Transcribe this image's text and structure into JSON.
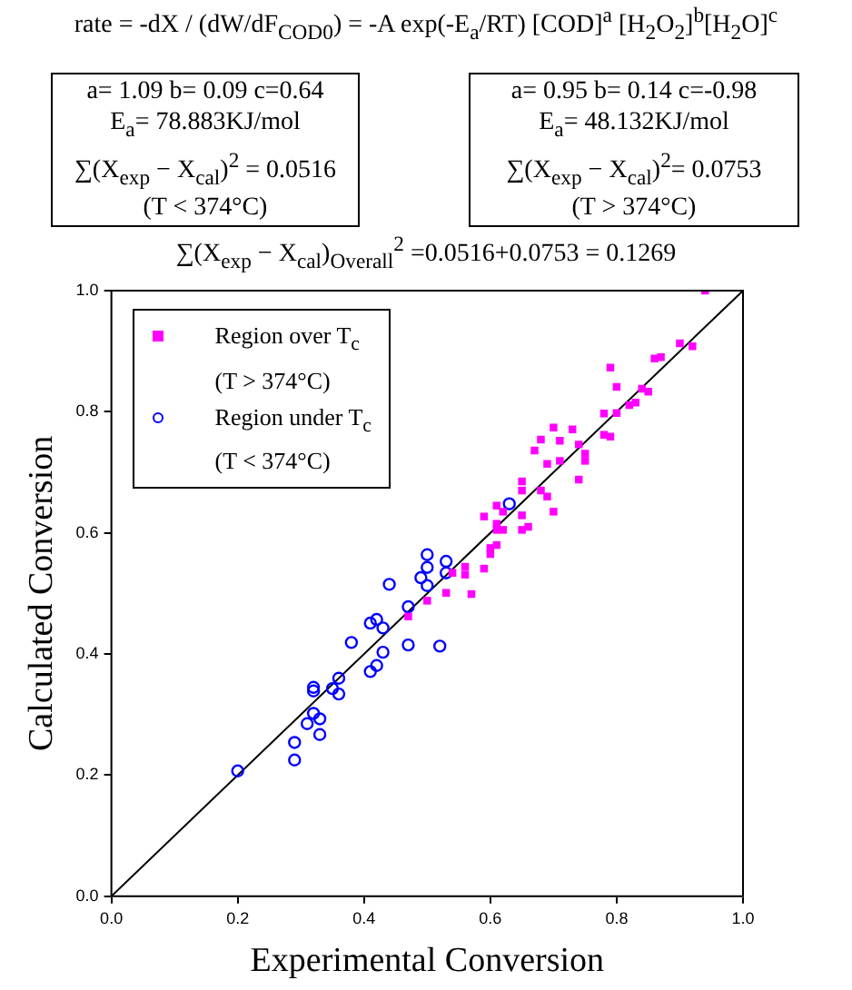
{
  "chart_data": {
    "type": "scatter",
    "xlabel": "Experimental Conversion",
    "ylabel": "Calculated Conversion",
    "annotations": [
      "rate = -dX / (dW/dF$_{COD0}$) = -A exp(-E$_{a}$/RT) [COD]$^{a}$ [H$_{2}$O$_{2}$]$^{b}$[H$_{2}$O]$^{c}$",
      "a= 1.09 b= 0.09 c=0.64\nE$_{a}$= 78.883KJ/mol\n∑(X$_{exp}$ − X$_{cal}$)$^{2}$ = 0.0516\n(T < 374°C)",
      "a= 0.95 b= 0.14 c=-0.98\nE$_{a}$= 48.132KJ/mol\n∑(X$_{exp}$ − X$_{cal}$)$^{2}$= 0.0753\n(T > 374°C)",
      "∑(X$_{exp}$ − X$_{cal}$)$_{Overall}$$^{2}$ =0.0516+0.0753 = 0.1269"
    ],
    "xlim": [
      0,
      1
    ],
    "ylim": [
      0,
      1
    ],
    "xticks": [
      {
        "value": 0,
        "label": "0.0"
      },
      {
        "value": 0.2,
        "label": "0.2"
      },
      {
        "value": 0.4,
        "label": "0.4"
      },
      {
        "value": 0.6,
        "label": "0.6"
      },
      {
        "value": 0.8,
        "label": "0.8"
      },
      {
        "value": 1,
        "label": "1.0"
      }
    ],
    "yticks": [
      {
        "value": 0,
        "label": "0.0"
      },
      {
        "value": 0.2,
        "label": "0.2"
      },
      {
        "value": 0.4,
        "label": "0.4"
      },
      {
        "value": 0.6,
        "label": "0.6"
      },
      {
        "value": 0.8,
        "label": "0.8"
      },
      {
        "value": 1,
        "label": "1.0"
      }
    ],
    "grid": false,
    "legend": "top left",
    "series": [
      {
        "name": "Region over T$_{c}$\n(T > 374°C)",
        "color": "#ff00ff",
        "marker": "square",
        "x": [
          0.94,
          0.9,
          0.92,
          0.86,
          0.87,
          0.79,
          0.8,
          0.84,
          0.85,
          0.82,
          0.83,
          0.78,
          0.8,
          0.78,
          0.79,
          0.7,
          0.73,
          0.68,
          0.71,
          0.74,
          0.67,
          0.75,
          0.75,
          0.69,
          0.71,
          0.74,
          0.65,
          0.65,
          0.68,
          0.69,
          0.7,
          0.61,
          0.62,
          0.59,
          0.65,
          0.61,
          0.61,
          0.62,
          0.65,
          0.66,
          0.6,
          0.61,
          0.6,
          0.56,
          0.56,
          0.59,
          0.54,
          0.53,
          0.57,
          0.5,
          0.47
        ],
        "values": [
          1.0,
          0.913,
          0.908,
          0.888,
          0.89,
          0.873,
          0.841,
          0.838,
          0.833,
          0.811,
          0.815,
          0.797,
          0.798,
          0.762,
          0.759,
          0.774,
          0.771,
          0.754,
          0.752,
          0.746,
          0.736,
          0.731,
          0.719,
          0.714,
          0.719,
          0.688,
          0.685,
          0.67,
          0.67,
          0.66,
          0.635,
          0.645,
          0.635,
          0.627,
          0.629,
          0.615,
          0.605,
          0.605,
          0.605,
          0.61,
          0.575,
          0.58,
          0.565,
          0.544,
          0.531,
          0.541,
          0.534,
          0.501,
          0.499,
          0.488,
          0.462
        ]
      },
      {
        "name": "Region under T$_{c}$\n(T < 374°C)",
        "color": "#0000ff",
        "marker": "circle",
        "x": [
          0.2,
          0.29,
          0.29,
          0.31,
          0.32,
          0.33,
          0.33,
          0.32,
          0.32,
          0.35,
          0.36,
          0.36,
          0.38,
          0.41,
          0.42,
          0.43,
          0.41,
          0.42,
          0.43,
          0.44,
          0.47,
          0.47,
          0.49,
          0.5,
          0.5,
          0.5,
          0.52,
          0.53,
          0.53,
          0.63
        ],
        "values": [
          0.207,
          0.254,
          0.225,
          0.285,
          0.302,
          0.293,
          0.267,
          0.345,
          0.339,
          0.343,
          0.36,
          0.334,
          0.419,
          0.371,
          0.381,
          0.403,
          0.451,
          0.457,
          0.443,
          0.515,
          0.478,
          0.415,
          0.526,
          0.564,
          0.543,
          0.513,
          0.413,
          0.553,
          0.534,
          0.648
        ]
      },
      {
        "type": "line",
        "color": "#000000",
        "marker": "none",
        "x": [
          0,
          1
        ],
        "values": [
          0,
          1
        ]
      }
    ]
  }
}
